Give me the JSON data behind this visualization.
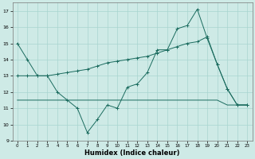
{
  "xlabel": "Humidex (Indice chaleur)",
  "xlim": [
    -0.5,
    23.5
  ],
  "ylim": [
    9,
    17.5
  ],
  "yticks": [
    9,
    10,
    11,
    12,
    13,
    14,
    15,
    16,
    17
  ],
  "xticks": [
    0,
    1,
    2,
    3,
    4,
    5,
    6,
    7,
    8,
    9,
    10,
    11,
    12,
    13,
    14,
    15,
    16,
    17,
    18,
    19,
    20,
    21,
    22,
    23
  ],
  "background_color": "#ceeae6",
  "grid_color": "#a8d5d0",
  "line_color": "#1a6b5e",
  "line1_x": [
    0,
    1,
    2,
    3,
    4,
    5,
    6,
    7,
    8,
    9,
    10,
    11,
    12,
    13,
    14,
    15,
    16,
    17,
    18,
    19,
    20,
    21,
    22,
    23
  ],
  "line1_y": [
    15,
    14,
    13,
    13,
    12,
    11.5,
    11,
    9.5,
    10.3,
    11.2,
    11,
    12.3,
    12.5,
    13.2,
    14.6,
    14.6,
    15.9,
    16.1,
    17.1,
    15.3,
    13.7,
    12.2,
    11.2,
    11.2
  ],
  "line2_x": [
    0,
    1,
    2,
    3,
    4,
    5,
    6,
    7,
    8,
    9,
    10,
    11,
    12,
    13,
    14,
    15,
    16,
    17,
    18,
    19,
    20,
    21,
    22,
    23
  ],
  "line2_y": [
    13.0,
    13.0,
    13.0,
    13.0,
    13.1,
    13.2,
    13.3,
    13.4,
    13.6,
    13.8,
    13.9,
    14.0,
    14.1,
    14.2,
    14.4,
    14.6,
    14.8,
    15.0,
    15.1,
    15.4,
    13.7,
    12.2,
    11.2,
    11.2
  ],
  "line3_x": [
    0,
    1,
    2,
    3,
    4,
    5,
    6,
    7,
    8,
    9,
    10,
    11,
    12,
    13,
    14,
    15,
    16,
    17,
    18,
    19,
    20,
    21,
    22,
    23
  ],
  "line3_y": [
    11.5,
    11.5,
    11.5,
    11.5,
    11.5,
    11.5,
    11.5,
    11.5,
    11.5,
    11.5,
    11.5,
    11.5,
    11.5,
    11.5,
    11.5,
    11.5,
    11.5,
    11.5,
    11.5,
    11.5,
    11.5,
    11.2,
    11.2,
    11.2
  ]
}
